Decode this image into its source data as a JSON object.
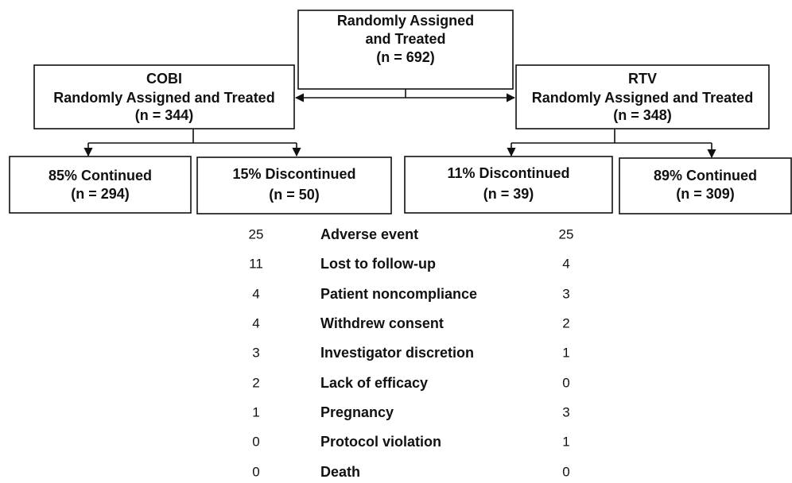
{
  "nodes": {
    "top": {
      "lines": [
        "Randomly Assigned",
        "and Treated",
        "(n = 692)"
      ]
    },
    "cobi": {
      "lines": [
        "COBI",
        "Randomly Assigned and Treated",
        "(n = 344)"
      ]
    },
    "rtv": {
      "lines": [
        "RTV",
        "Randomly Assigned and Treated",
        "(n = 348)"
      ]
    },
    "cobi_continued": {
      "lines": [
        "85% Continued",
        "(n = 294)"
      ]
    },
    "cobi_discontinued": {
      "lines": [
        "15% Discontinued",
        "(n = 50)"
      ]
    },
    "rtv_discontinued": {
      "lines": [
        "11% Discontinued",
        "(n = 39)"
      ]
    },
    "rtv_continued": {
      "lines": [
        "89% Continued",
        "(n = 309)"
      ]
    }
  },
  "reasons": {
    "rows": [
      [
        25,
        "Adverse event",
        25
      ],
      [
        11,
        "Lost to follow-up",
        4
      ],
      [
        4,
        "Patient noncompliance",
        3
      ],
      [
        4,
        "Withdrew consent",
        2
      ],
      [
        3,
        "Investigator discretion",
        1
      ],
      [
        2,
        "Lack of efficacy",
        0
      ],
      [
        1,
        "Pregnancy",
        3
      ],
      [
        0,
        "Protocol violation",
        1
      ],
      [
        0,
        "Death",
        0
      ]
    ]
  }
}
